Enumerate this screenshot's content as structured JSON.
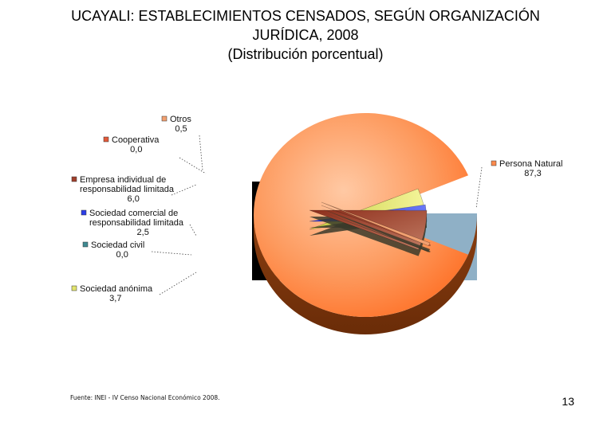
{
  "header": {
    "title_line1": "UCAYALI: ESTABLECIMIENTOS CENSADOS, SEGÚN ORGANIZACIÓN",
    "title_line2": "JURÍDICA, 2008",
    "title_line3": "(Distribución porcentual)"
  },
  "footer": {
    "source": "Fuente: INEI - IV Censo Nacional Económico 2008.",
    "page_number": "13"
  },
  "chart_data": {
    "type": "pie",
    "title": "UCAYALI: ESTABLECIMIENTOS CENSADOS, SEGÚN ORGANIZACIÓN JURÍDICA, 2008",
    "subtitle": "(Distribución porcentual)",
    "exploded": true,
    "three_d": true,
    "slices": [
      {
        "label": "Persona Natural",
        "label_lines": [
          "Persona Natural"
        ],
        "value": 87.3,
        "value_text": "87,3",
        "color": "#fb8a4d"
      },
      {
        "label": "Sociedad civil",
        "label_lines": [
          "Sociedad civil"
        ],
        "value": 0.0,
        "value_text": "0,0",
        "color": "#3f8a92"
      },
      {
        "label": "Sociedad anónima",
        "label_lines": [
          "Sociedad anónima"
        ],
        "value": 3.7,
        "value_text": "3,7",
        "color": "#e2e46e"
      },
      {
        "label": "Sociedad comercial de responsabilidad limitada",
        "label_lines": [
          "Sociedad comercial de",
          "responsabilidad limitada"
        ],
        "value": 2.5,
        "value_text": "2,5",
        "color": "#2c3de8"
      },
      {
        "label": "Empresa individual de responsabilidad limitada",
        "label_lines": [
          "Empresa individual de",
          "responsabilidad limitada"
        ],
        "value": 6.0,
        "value_text": "6,0",
        "color": "#a0402c"
      },
      {
        "label": "Cooperativa",
        "label_lines": [
          "Cooperativa"
        ],
        "value": 0.0,
        "value_text": "0,0",
        "color": "#e25a3a"
      },
      {
        "label": "Otros",
        "label_lines": [
          "Otros"
        ],
        "value": 0.5,
        "value_text": "0,5",
        "color": "#f2a070"
      }
    ],
    "legend": "none"
  }
}
